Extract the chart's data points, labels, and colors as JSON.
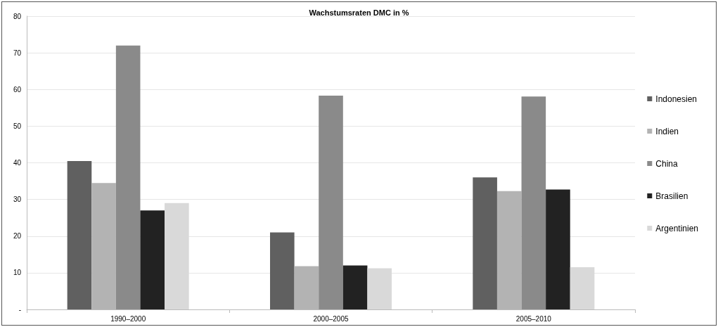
{
  "chart_data": {
    "type": "bar",
    "title": "Wachstumsraten DMC in %",
    "categories": [
      "1990–2000",
      "2000–2005",
      "2005–2010"
    ],
    "series": [
      {
        "name": "Indonesien",
        "color": "#606060",
        "values": [
          40.5,
          21,
          36
        ]
      },
      {
        "name": "Indien",
        "color": "#b3b3b3",
        "values": [
          34.5,
          11.8,
          32.3
        ]
      },
      {
        "name": "China",
        "color": "#8a8a8a",
        "values": [
          72,
          58.3,
          58.1
        ]
      },
      {
        "name": "Brasilien",
        "color": "#222222",
        "values": [
          27,
          12,
          32.7
        ]
      },
      {
        "name": "Argentinien",
        "color": "#d9d9d9",
        "values": [
          29,
          11.2,
          11.5
        ]
      }
    ],
    "ylim": [
      0,
      80
    ],
    "yticks": [
      {
        "value": 0,
        "label": "-"
      },
      10,
      20,
      30,
      40,
      50,
      60,
      70,
      80
    ],
    "grid": "y",
    "legend": "right"
  }
}
